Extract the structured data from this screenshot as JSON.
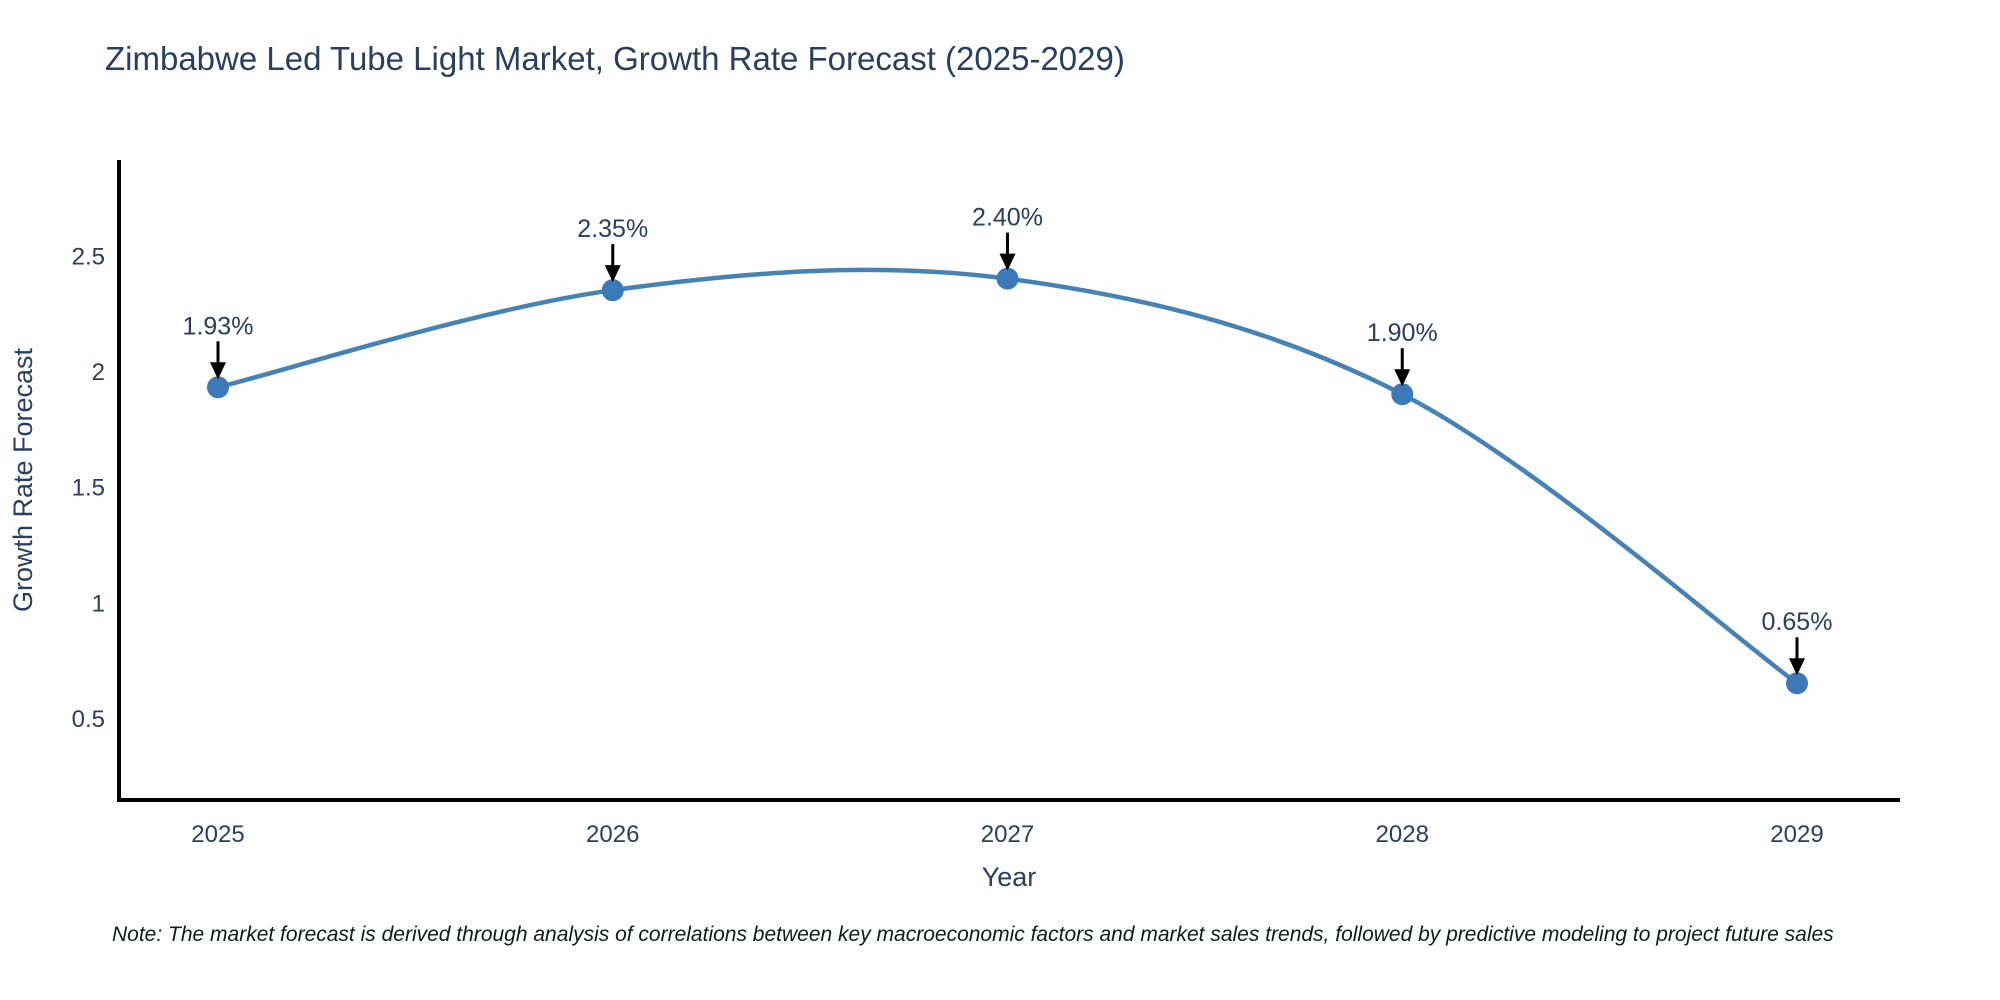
{
  "chart_data": {
    "type": "line",
    "title": "Zimbabwe Led Tube Light Market, Growth Rate Forecast (2025-2029)",
    "xlabel": "Year",
    "ylabel": "Growth Rate Forecast",
    "categories": [
      "2025",
      "2026",
      "2027",
      "2028",
      "2029"
    ],
    "values": [
      1.93,
      2.35,
      2.4,
      1.9,
      0.65
    ],
    "point_labels": [
      "1.93%",
      "2.35%",
      "2.40%",
      "1.90%",
      "0.65%"
    ],
    "ytick_labels": [
      "0.5",
      "1",
      "1.5",
      "2",
      "2.5"
    ],
    "ytick_values": [
      0.5,
      1,
      1.5,
      2,
      2.5
    ],
    "ylim": [
      0.145,
      2.913
    ],
    "line_shape": "spline",
    "grid": false,
    "legend_position": "none",
    "note": "Note: The market forecast is derived through analysis of correlations between key macroeconomic factors and market sales trends, followed by predictive modeling to project future sales",
    "colors": {
      "line": "#4682b4",
      "marker": "#3b79b8",
      "arrow": "#000000",
      "axis": "#000000",
      "tick_text": "#2a3f5f",
      "title_text": "#2a3f5f",
      "annotation_text": "#2a3f5f",
      "note_text": "#14181c"
    }
  }
}
